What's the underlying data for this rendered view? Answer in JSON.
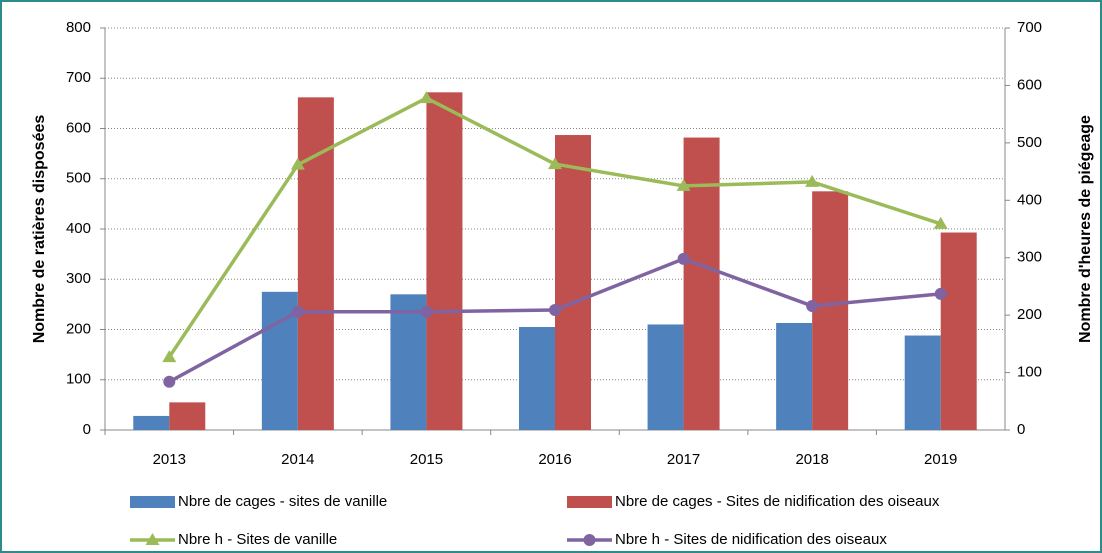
{
  "chart_data": {
    "type": "bar-line",
    "categories": [
      "2013",
      "2014",
      "2015",
      "2016",
      "2017",
      "2018",
      "2019"
    ],
    "ylabel": "Nombre de ratières disposées",
    "y2label": "Nombre d'heures de piégeage",
    "ylim": [
      0,
      800
    ],
    "yticks": [
      0,
      100,
      200,
      300,
      400,
      500,
      600,
      700,
      800
    ],
    "y2lim": [
      0,
      700
    ],
    "y2ticks": [
      0,
      100,
      200,
      300,
      400,
      500,
      600,
      700
    ],
    "grid": true,
    "series": [
      {
        "name": "Nbre de cages - sites de vanille",
        "type": "bar",
        "color": "#4f81bd",
        "values": [
          28,
          275,
          270,
          205,
          210,
          213,
          188
        ]
      },
      {
        "name": "Nbre de cages - Sites de nidification des oiseaux",
        "type": "bar",
        "color": "#c0504d",
        "values": [
          55,
          662,
          672,
          587,
          582,
          475,
          393
        ]
      },
      {
        "name": "Nbre h - Sites de vanille",
        "type": "line",
        "axis": "y2",
        "marker": "triangle",
        "color": "#9bbb59",
        "values": [
          127,
          462,
          578,
          463,
          425,
          432,
          359
        ]
      },
      {
        "name": "Nbre h - Sites de nidification des oiseaux",
        "type": "line",
        "axis": "y2",
        "marker": "circle",
        "color": "#8064a2",
        "values": [
          84,
          206,
          206,
          209,
          298,
          216,
          237
        ]
      }
    ]
  }
}
